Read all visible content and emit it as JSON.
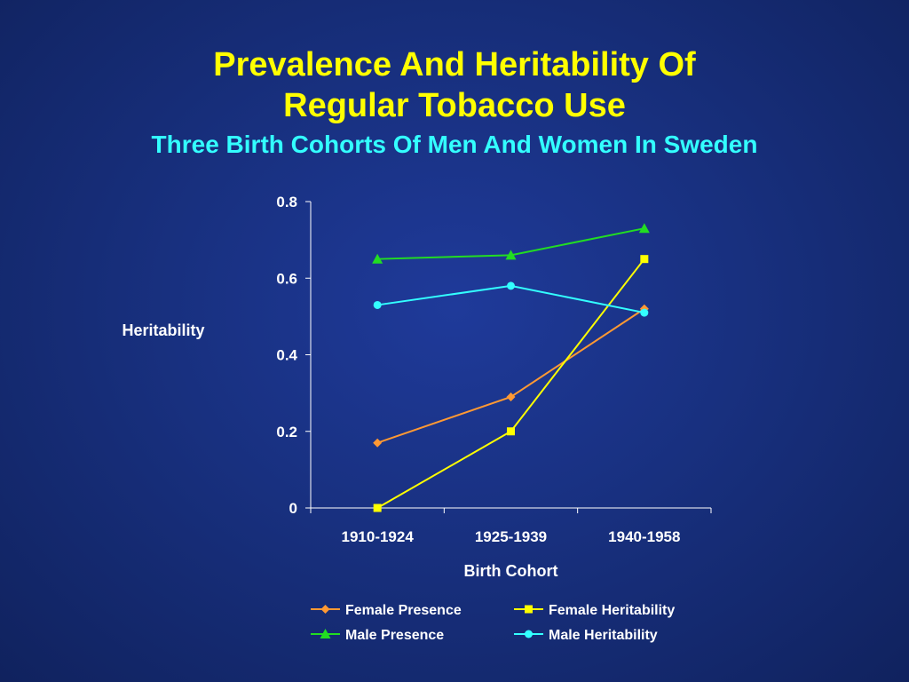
{
  "slide": {
    "title_line1": "Prevalence And Heritability Of",
    "title_line2": "Regular Tobacco Use",
    "subtitle": "Three Birth Cohorts Of Men And Women In Sweden"
  },
  "colors": {
    "background": "#18307f",
    "title": "#ffff00",
    "subtitle": "#33ffff",
    "axis": "#ffffff"
  },
  "chart_data": {
    "type": "line",
    "categories": [
      "1910-1924",
      "1925-1939",
      "1940-1958"
    ],
    "xlabel": "Birth Cohort",
    "ylabel": "Heritability",
    "ylim": [
      0,
      0.8
    ],
    "yticks": [
      0,
      0.2,
      0.4,
      0.6,
      0.8
    ],
    "ytick_labels": [
      "0",
      "0.2",
      "0.4",
      "0.6",
      "0.8"
    ],
    "grid": false,
    "legend_position": "bottom",
    "series": [
      {
        "name": "Female Presence",
        "values": [
          0.17,
          0.29,
          0.52
        ],
        "color": "#ff9933",
        "marker": "diamond"
      },
      {
        "name": "Female Heritability",
        "values": [
          0.0,
          0.2,
          0.65
        ],
        "color": "#ffff00",
        "marker": "square"
      },
      {
        "name": "Male Presence",
        "values": [
          0.65,
          0.66,
          0.73
        ],
        "color": "#22dd22",
        "marker": "triangle"
      },
      {
        "name": "Male Heritability",
        "values": [
          0.53,
          0.58,
          0.51
        ],
        "color": "#33ffff",
        "marker": "circle"
      }
    ]
  }
}
